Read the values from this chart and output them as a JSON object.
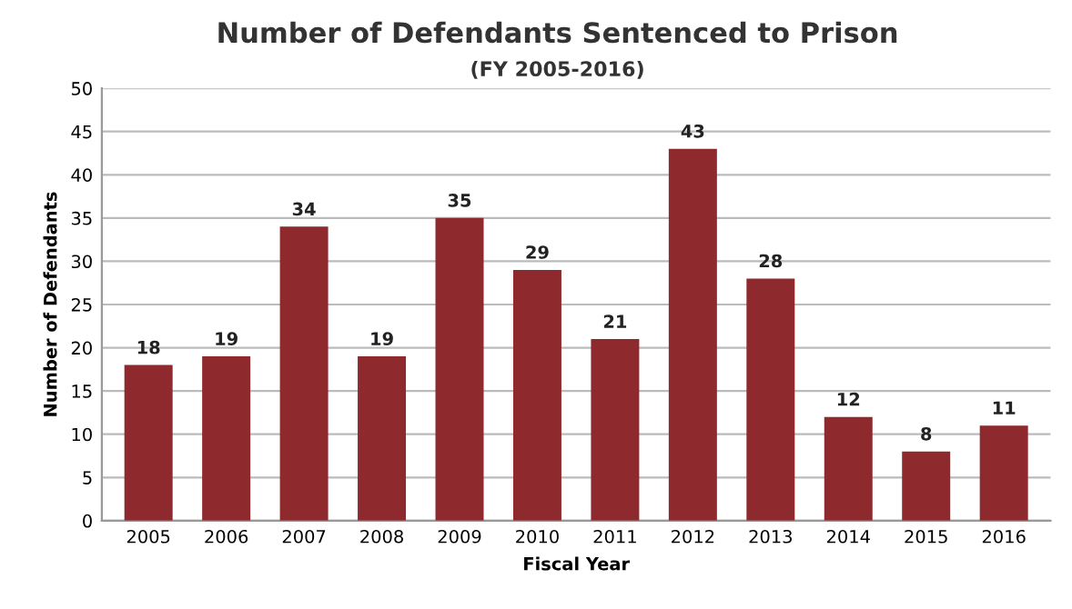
{
  "chart_data": {
    "type": "bar",
    "title": "Number of Defendants Sentenced to Prison",
    "subtitle": "(FY 2005-2016)",
    "xlabel": "Fiscal Year",
    "ylabel": "Number of Defendants",
    "categories": [
      "2005",
      "2006",
      "2007",
      "2008",
      "2009",
      "2010",
      "2011",
      "2012",
      "2013",
      "2014",
      "2015",
      "2016"
    ],
    "values": [
      18,
      19,
      34,
      19,
      35,
      29,
      21,
      43,
      28,
      12,
      8,
      11
    ],
    "color": "#8e2a2e",
    "ylim": [
      0,
      50
    ],
    "yticks": [
      0,
      5,
      10,
      15,
      20,
      25,
      30,
      35,
      40,
      45,
      50
    ],
    "grid": "y",
    "data_labels": true
  }
}
